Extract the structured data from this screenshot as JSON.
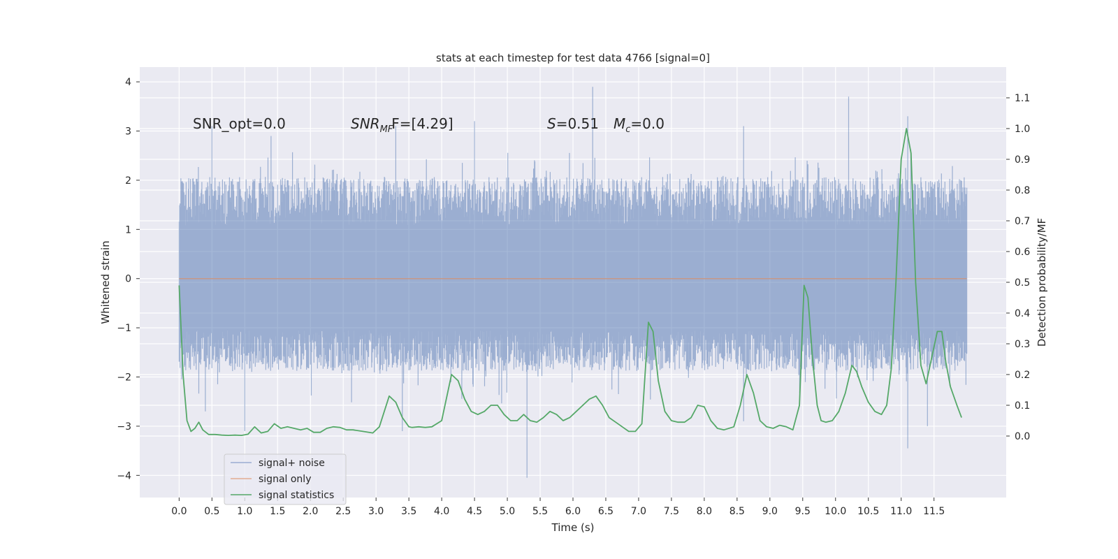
{
  "chart_data": {
    "type": "line",
    "title": "stats at each timestep for test data 4766 [signal=0]",
    "xlabel": "Time (s)",
    "ylabel": "Whitened strain",
    "ylabel_right": "Detection probability/MF",
    "xlim": [
      -0.6,
      12.6
    ],
    "ylim": [
      -4.45,
      4.3
    ],
    "ylim_right": [
      -0.2,
      1.2
    ],
    "x_ticks": [
      0.0,
      0.5,
      1.0,
      1.5,
      2.0,
      2.5,
      3.0,
      3.5,
      4.0,
      4.5,
      5.0,
      5.5,
      6.0,
      6.5,
      7.0,
      7.5,
      8.0,
      8.5,
      9.0,
      9.5,
      10.0,
      10.5,
      11.0,
      11.5
    ],
    "x_tick_labels": [
      "0.0",
      "0.5",
      "1.0",
      "1.5",
      "2.0",
      "2.5",
      "3.0",
      "3.5",
      "4.0",
      "4.5",
      "5.0",
      "5.5",
      "6.0",
      "6.5",
      "7.0",
      "7.5",
      "8.0",
      "8.5",
      "9.0",
      "9.5",
      "10.0",
      "10.5",
      "11.0",
      "11.5"
    ],
    "y_ticks": [
      -4,
      -3,
      -2,
      -1,
      0,
      1,
      2,
      3,
      4
    ],
    "y_tick_labels": [
      "−4",
      "−3",
      "−2",
      "−1",
      "0",
      "1",
      "2",
      "3",
      "4"
    ],
    "y_right_ticks": [
      0.0,
      0.1,
      0.2,
      0.3,
      0.4,
      0.5,
      0.6,
      0.7,
      0.8,
      0.9,
      1.0,
      1.1
    ],
    "y_right_tick_labels": [
      "0.0",
      "0.1",
      "0.2",
      "0.3",
      "0.4",
      "0.5",
      "0.6",
      "0.7",
      "0.8",
      "0.9",
      "1.0",
      "1.1"
    ],
    "grid": true,
    "legend_position": "lower-left",
    "annotations": [
      "SNR_opt=0.0",
      "F=[4.29]",
      "=0.51",
      "=0.0"
    ],
    "annotation_symbols": {
      "snr": "SNR",
      "snr_sub": "MF",
      "s": "S",
      "m": "M",
      "m_sub": "c"
    },
    "series": [
      {
        "name": "signal+ noise",
        "color": "#4c72b0",
        "opacity": 0.5,
        "axis": "left",
        "x_range": [
          0.0,
          12.0
        ],
        "typical_upper": 1.8,
        "typical_lower": -1.5,
        "upper_peaks": [
          [
            0.5,
            3.1
          ],
          [
            1.4,
            2.9
          ],
          [
            3.3,
            3.1
          ],
          [
            4.5,
            3.2
          ],
          [
            6.3,
            3.9
          ],
          [
            8.6,
            3.1
          ],
          [
            10.2,
            3.7
          ],
          [
            11.1,
            3.3
          ]
        ],
        "lower_peaks": [
          [
            0.4,
            -2.7
          ],
          [
            1.0,
            -3.1
          ],
          [
            3.4,
            -3.1
          ],
          [
            5.3,
            -4.05
          ],
          [
            8.6,
            -2.9
          ],
          [
            11.1,
            -3.45
          ],
          [
            11.4,
            -3.0
          ]
        ]
      },
      {
        "name": "signal only",
        "color": "#dd8452",
        "axis": "left",
        "x": [
          0.0,
          12.0
        ],
        "values": [
          0.0,
          0.0
        ]
      },
      {
        "name": "signal statistics",
        "color": "#55a868",
        "axis": "right",
        "x": [
          0.0,
          0.06,
          0.12,
          0.18,
          0.24,
          0.3,
          0.36,
          0.45,
          0.55,
          0.65,
          0.75,
          0.85,
          0.95,
          1.05,
          1.15,
          1.25,
          1.35,
          1.45,
          1.55,
          1.65,
          1.75,
          1.85,
          1.95,
          2.05,
          2.15,
          2.25,
          2.35,
          2.45,
          2.55,
          2.65,
          2.8,
          2.95,
          3.05,
          3.2,
          3.3,
          3.4,
          3.5,
          3.55,
          3.65,
          3.75,
          3.85,
          4.0,
          4.15,
          4.25,
          4.35,
          4.45,
          4.55,
          4.65,
          4.75,
          4.85,
          4.95,
          5.05,
          5.15,
          5.25,
          5.35,
          5.45,
          5.55,
          5.65,
          5.75,
          5.85,
          5.95,
          6.05,
          6.15,
          6.25,
          6.35,
          6.45,
          6.55,
          6.65,
          6.75,
          6.85,
          6.95,
          7.05,
          7.15,
          7.22,
          7.3,
          7.4,
          7.5,
          7.6,
          7.7,
          7.8,
          7.9,
          8.0,
          8.1,
          8.2,
          8.3,
          8.45,
          8.55,
          8.65,
          8.75,
          8.85,
          8.95,
          9.05,
          9.15,
          9.25,
          9.35,
          9.45,
          9.52,
          9.58,
          9.65,
          9.72,
          9.78,
          9.85,
          9.95,
          10.05,
          10.15,
          10.25,
          10.32,
          10.4,
          10.5,
          10.6,
          10.7,
          10.78,
          10.85,
          10.92,
          11.0,
          11.08,
          11.15,
          11.22,
          11.3,
          11.38,
          11.45,
          11.55,
          11.62,
          11.68,
          11.75,
          11.85,
          11.92
        ],
        "values": [
          0.49,
          0.2,
          0.05,
          0.015,
          0.025,
          0.045,
          0.02,
          0.005,
          0.005,
          0.003,
          0.002,
          0.003,
          0.002,
          0.006,
          0.03,
          0.01,
          0.015,
          0.04,
          0.025,
          0.03,
          0.025,
          0.02,
          0.025,
          0.012,
          0.012,
          0.025,
          0.03,
          0.028,
          0.02,
          0.02,
          0.015,
          0.01,
          0.03,
          0.13,
          0.11,
          0.06,
          0.03,
          0.028,
          0.03,
          0.028,
          0.03,
          0.05,
          0.2,
          0.18,
          0.12,
          0.08,
          0.07,
          0.08,
          0.1,
          0.1,
          0.07,
          0.05,
          0.05,
          0.07,
          0.05,
          0.045,
          0.06,
          0.08,
          0.07,
          0.05,
          0.06,
          0.08,
          0.1,
          0.12,
          0.13,
          0.1,
          0.06,
          0.045,
          0.03,
          0.015,
          0.015,
          0.04,
          0.37,
          0.34,
          0.18,
          0.08,
          0.05,
          0.045,
          0.045,
          0.06,
          0.1,
          0.095,
          0.05,
          0.025,
          0.02,
          0.03,
          0.1,
          0.2,
          0.14,
          0.05,
          0.03,
          0.025,
          0.035,
          0.03,
          0.02,
          0.1,
          0.49,
          0.45,
          0.25,
          0.1,
          0.05,
          0.045,
          0.05,
          0.08,
          0.14,
          0.23,
          0.21,
          0.16,
          0.11,
          0.08,
          0.07,
          0.1,
          0.22,
          0.5,
          0.9,
          1.0,
          0.92,
          0.5,
          0.23,
          0.17,
          0.24,
          0.34,
          0.34,
          0.24,
          0.16,
          0.1,
          0.06
        ]
      }
    ]
  }
}
